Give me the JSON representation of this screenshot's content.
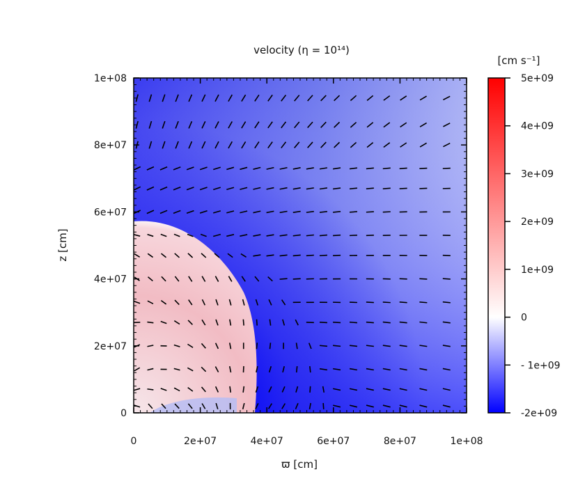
{
  "chart_data": {
    "type": "heatmap",
    "title": "velocity (η = 10¹⁴)",
    "xlabel": "ϖ [cm]",
    "ylabel": "z [cm]",
    "xlim": [
      0,
      100000000
    ],
    "ylim": [
      0,
      100000000
    ],
    "x_ticks": [
      "0",
      "2e+07",
      "4e+07",
      "6e+07",
      "8e+07",
      "1e+08"
    ],
    "x_tick_values": [
      0,
      20000000,
      40000000,
      60000000,
      80000000,
      100000000
    ],
    "y_ticks": [
      "0",
      "2e+07",
      "4e+07",
      "6e+07",
      "8e+07",
      "1e+08"
    ],
    "y_tick_values": [
      0,
      20000000,
      40000000,
      60000000,
      80000000,
      100000000
    ],
    "colorbar": {
      "label": "[cm s⁻¹]",
      "range": [
        -2000000000,
        5000000000
      ],
      "ticks": [
        "5e+09",
        "4e+09",
        "3e+09",
        "2e+09",
        "1e+09",
        "0",
        "- 1e+09",
        "-2e+09"
      ],
      "tick_values": [
        5000000000,
        4000000000,
        3000000000,
        2000000000,
        1000000000,
        0,
        -1000000000,
        -2000000000
      ],
      "colors": {
        "min": "#0000ff",
        "zero": "#ffffff",
        "max": "#ff0000"
      }
    },
    "regions": [
      {
        "name": "outflow bubble",
        "boundary": "quarter-circle of radius ~5.8e+07 centred at origin",
        "velocity_approx": 700000000
      },
      {
        "name": "infall region",
        "velocity_approx": -1800000000
      }
    ],
    "vector_field": {
      "description": "velocity direction arrows on a grid",
      "x_grid": [
        1000000,
        5000000,
        9000000,
        13000000,
        17000000,
        21000000,
        25000000,
        29000000,
        33000000,
        37000000,
        41000000,
        45000000,
        49000000,
        53000000,
        57000000,
        61000000,
        66000000,
        71000000,
        76000000,
        81000000,
        87000000,
        94000000
      ],
      "y_grid": [
        94000000,
        86000000,
        80000000,
        73000000,
        67000000,
        60000000,
        53000000,
        47000000,
        40000000,
        33000000,
        27000000,
        20000000,
        13000000,
        7000000,
        2000000
      ]
    },
    "grid": false,
    "legend": "colorbar right"
  }
}
